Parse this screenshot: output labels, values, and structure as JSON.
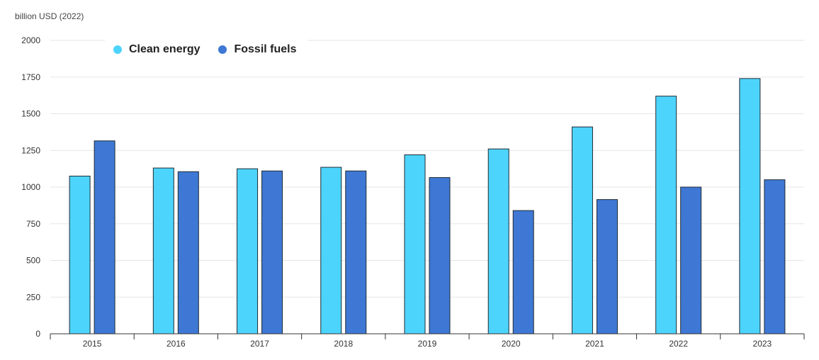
{
  "chart_data": {
    "type": "bar",
    "unit_label": "billion USD (2022)",
    "categories": [
      "2015",
      "2016",
      "2017",
      "2018",
      "2019",
      "2020",
      "2021",
      "2022",
      "2023"
    ],
    "series": [
      {
        "name": "Clean energy",
        "color": "#4dd4fc",
        "values": [
          1075,
          1130,
          1125,
          1135,
          1220,
          1260,
          1410,
          1620,
          1740
        ]
      },
      {
        "name": "Fossil fuels",
        "color": "#3e78d4",
        "values": [
          1315,
          1105,
          1110,
          1110,
          1065,
          840,
          915,
          1000,
          1050
        ]
      }
    ],
    "ylim": [
      0,
      2000
    ],
    "yticks": [
      0,
      250,
      500,
      750,
      1000,
      1250,
      1500,
      1750,
      2000
    ],
    "grid": true,
    "legend": "top-left"
  }
}
